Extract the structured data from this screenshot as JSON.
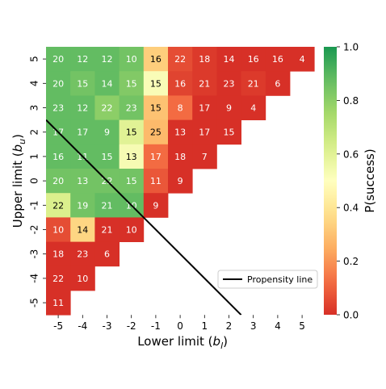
{
  "chart_data": {
    "type": "heatmap",
    "xlabel": "Lower limit (b_l)",
    "ylabel": "Upper limit (b_u)",
    "x_categories": [
      -5,
      -4,
      -3,
      -2,
      -1,
      0,
      1,
      2,
      3,
      4,
      5
    ],
    "y_categories": [
      5,
      4,
      3,
      2,
      1,
      0,
      -1,
      -2,
      -3,
      -4,
      -5
    ],
    "colorbar": {
      "label": "P(success)",
      "range": [
        0.0,
        1.0
      ],
      "ticks": [
        "0.0",
        "0.2",
        "0.4",
        "0.6",
        "0.8",
        "1.0"
      ],
      "colormap": "RdYlGn"
    },
    "cells": [
      {
        "x": -5,
        "y": 5,
        "count": 20,
        "p": 0.88
      },
      {
        "x": -4,
        "y": 5,
        "count": 12,
        "p": 0.88
      },
      {
        "x": -3,
        "y": 5,
        "count": 12,
        "p": 0.88
      },
      {
        "x": -2,
        "y": 5,
        "count": 10,
        "p": 0.85
      },
      {
        "x": -1,
        "y": 5,
        "count": 16,
        "p": 0.33
      },
      {
        "x": 0,
        "y": 5,
        "count": 22,
        "p": 0.06
      },
      {
        "x": 1,
        "y": 5,
        "count": 18,
        "p": 0.02
      },
      {
        "x": 2,
        "y": 5,
        "count": 14,
        "p": 0.0
      },
      {
        "x": 3,
        "y": 5,
        "count": 16,
        "p": 0.0
      },
      {
        "x": 4,
        "y": 5,
        "count": 16,
        "p": 0.0
      },
      {
        "x": 5,
        "y": 5,
        "count": 4,
        "p": 0.0
      },
      {
        "x": -5,
        "y": 4,
        "count": 20,
        "p": 0.88
      },
      {
        "x": -4,
        "y": 4,
        "count": 15,
        "p": 0.85
      },
      {
        "x": -3,
        "y": 4,
        "count": 14,
        "p": 0.88
      },
      {
        "x": -2,
        "y": 4,
        "count": 15,
        "p": 0.82
      },
      {
        "x": -1,
        "y": 4,
        "count": 15,
        "p": 0.52
      },
      {
        "x": 0,
        "y": 4,
        "count": 16,
        "p": 0.04
      },
      {
        "x": 1,
        "y": 4,
        "count": 21,
        "p": 0.02
      },
      {
        "x": 2,
        "y": 4,
        "count": 23,
        "p": 0.0
      },
      {
        "x": 3,
        "y": 4,
        "count": 21,
        "p": 0.02
      },
      {
        "x": 4,
        "y": 4,
        "count": 6,
        "p": 0.0
      },
      {
        "x": -5,
        "y": 3,
        "count": 23,
        "p": 0.88
      },
      {
        "x": -4,
        "y": 3,
        "count": 12,
        "p": 0.88
      },
      {
        "x": -3,
        "y": 3,
        "count": 22,
        "p": 0.8
      },
      {
        "x": -2,
        "y": 3,
        "count": 23,
        "p": 0.85
      },
      {
        "x": -1,
        "y": 3,
        "count": 15,
        "p": 0.3
      },
      {
        "x": 0,
        "y": 3,
        "count": 8,
        "p": 0.12
      },
      {
        "x": 1,
        "y": 3,
        "count": 17,
        "p": 0.0
      },
      {
        "x": 2,
        "y": 3,
        "count": 9,
        "p": 0.0
      },
      {
        "x": 3,
        "y": 3,
        "count": 4,
        "p": 0.0
      },
      {
        "x": -5,
        "y": 2,
        "count": 17,
        "p": 0.88
      },
      {
        "x": -4,
        "y": 2,
        "count": 17,
        "p": 0.88
      },
      {
        "x": -3,
        "y": 2,
        "count": 9,
        "p": 0.88
      },
      {
        "x": -2,
        "y": 2,
        "count": 15,
        "p": 0.6
      },
      {
        "x": -1,
        "y": 2,
        "count": 25,
        "p": 0.28
      },
      {
        "x": 0,
        "y": 2,
        "count": 13,
        "p": 0.0
      },
      {
        "x": 1,
        "y": 2,
        "count": 17,
        "p": 0.0
      },
      {
        "x": 2,
        "y": 2,
        "count": 15,
        "p": 0.0
      },
      {
        "x": -5,
        "y": 1,
        "count": 16,
        "p": 0.88
      },
      {
        "x": -4,
        "y": 1,
        "count": 11,
        "p": 0.88
      },
      {
        "x": -3,
        "y": 1,
        "count": 15,
        "p": 0.88
      },
      {
        "x": -2,
        "y": 1,
        "count": 13,
        "p": 0.53
      },
      {
        "x": -1,
        "y": 1,
        "count": 17,
        "p": 0.12
      },
      {
        "x": 0,
        "y": 1,
        "count": 18,
        "p": 0.0
      },
      {
        "x": 1,
        "y": 1,
        "count": 7,
        "p": 0.0
      },
      {
        "x": -5,
        "y": 0,
        "count": 20,
        "p": 0.85
      },
      {
        "x": -4,
        "y": 0,
        "count": 13,
        "p": 0.85
      },
      {
        "x": -3,
        "y": 0,
        "count": 22,
        "p": 0.85
      },
      {
        "x": -2,
        "y": 0,
        "count": 15,
        "p": 0.85
      },
      {
        "x": -1,
        "y": 0,
        "count": 11,
        "p": 0.08
      },
      {
        "x": 0,
        "y": 0,
        "count": 9,
        "p": 0.0
      },
      {
        "x": -5,
        "y": -1,
        "count": 22,
        "p": 0.62
      },
      {
        "x": -4,
        "y": -1,
        "count": 19,
        "p": 0.85
      },
      {
        "x": -3,
        "y": -1,
        "count": 21,
        "p": 0.88
      },
      {
        "x": -2,
        "y": -1,
        "count": 10,
        "p": 0.88
      },
      {
        "x": -1,
        "y": -1,
        "count": 9,
        "p": 0.0
      },
      {
        "x": -5,
        "y": -2,
        "count": 10,
        "p": 0.06
      },
      {
        "x": -4,
        "y": -2,
        "count": 14,
        "p": 0.35
      },
      {
        "x": -3,
        "y": -2,
        "count": 21,
        "p": 0.0
      },
      {
        "x": -2,
        "y": -2,
        "count": 10,
        "p": 0.0
      },
      {
        "x": -5,
        "y": -3,
        "count": 18,
        "p": 0.0
      },
      {
        "x": -4,
        "y": -3,
        "count": 23,
        "p": 0.0
      },
      {
        "x": -3,
        "y": -3,
        "count": 6,
        "p": 0.0
      },
      {
        "x": -5,
        "y": -4,
        "count": 22,
        "p": 0.0
      },
      {
        "x": -4,
        "y": -4,
        "count": 10,
        "p": 0.0
      },
      {
        "x": -5,
        "y": -5,
        "count": 11,
        "p": 0.0
      }
    ],
    "lines": [
      {
        "name": "Propensity line",
        "color": "#000000",
        "points": [
          {
            "x": -5.5,
            "y": 2.5
          },
          {
            "x": 2.5,
            "y": -5.5
          }
        ]
      }
    ],
    "legend": {
      "placement": "lower-right",
      "entries": [
        "Propensity line"
      ]
    },
    "grid": false
  }
}
